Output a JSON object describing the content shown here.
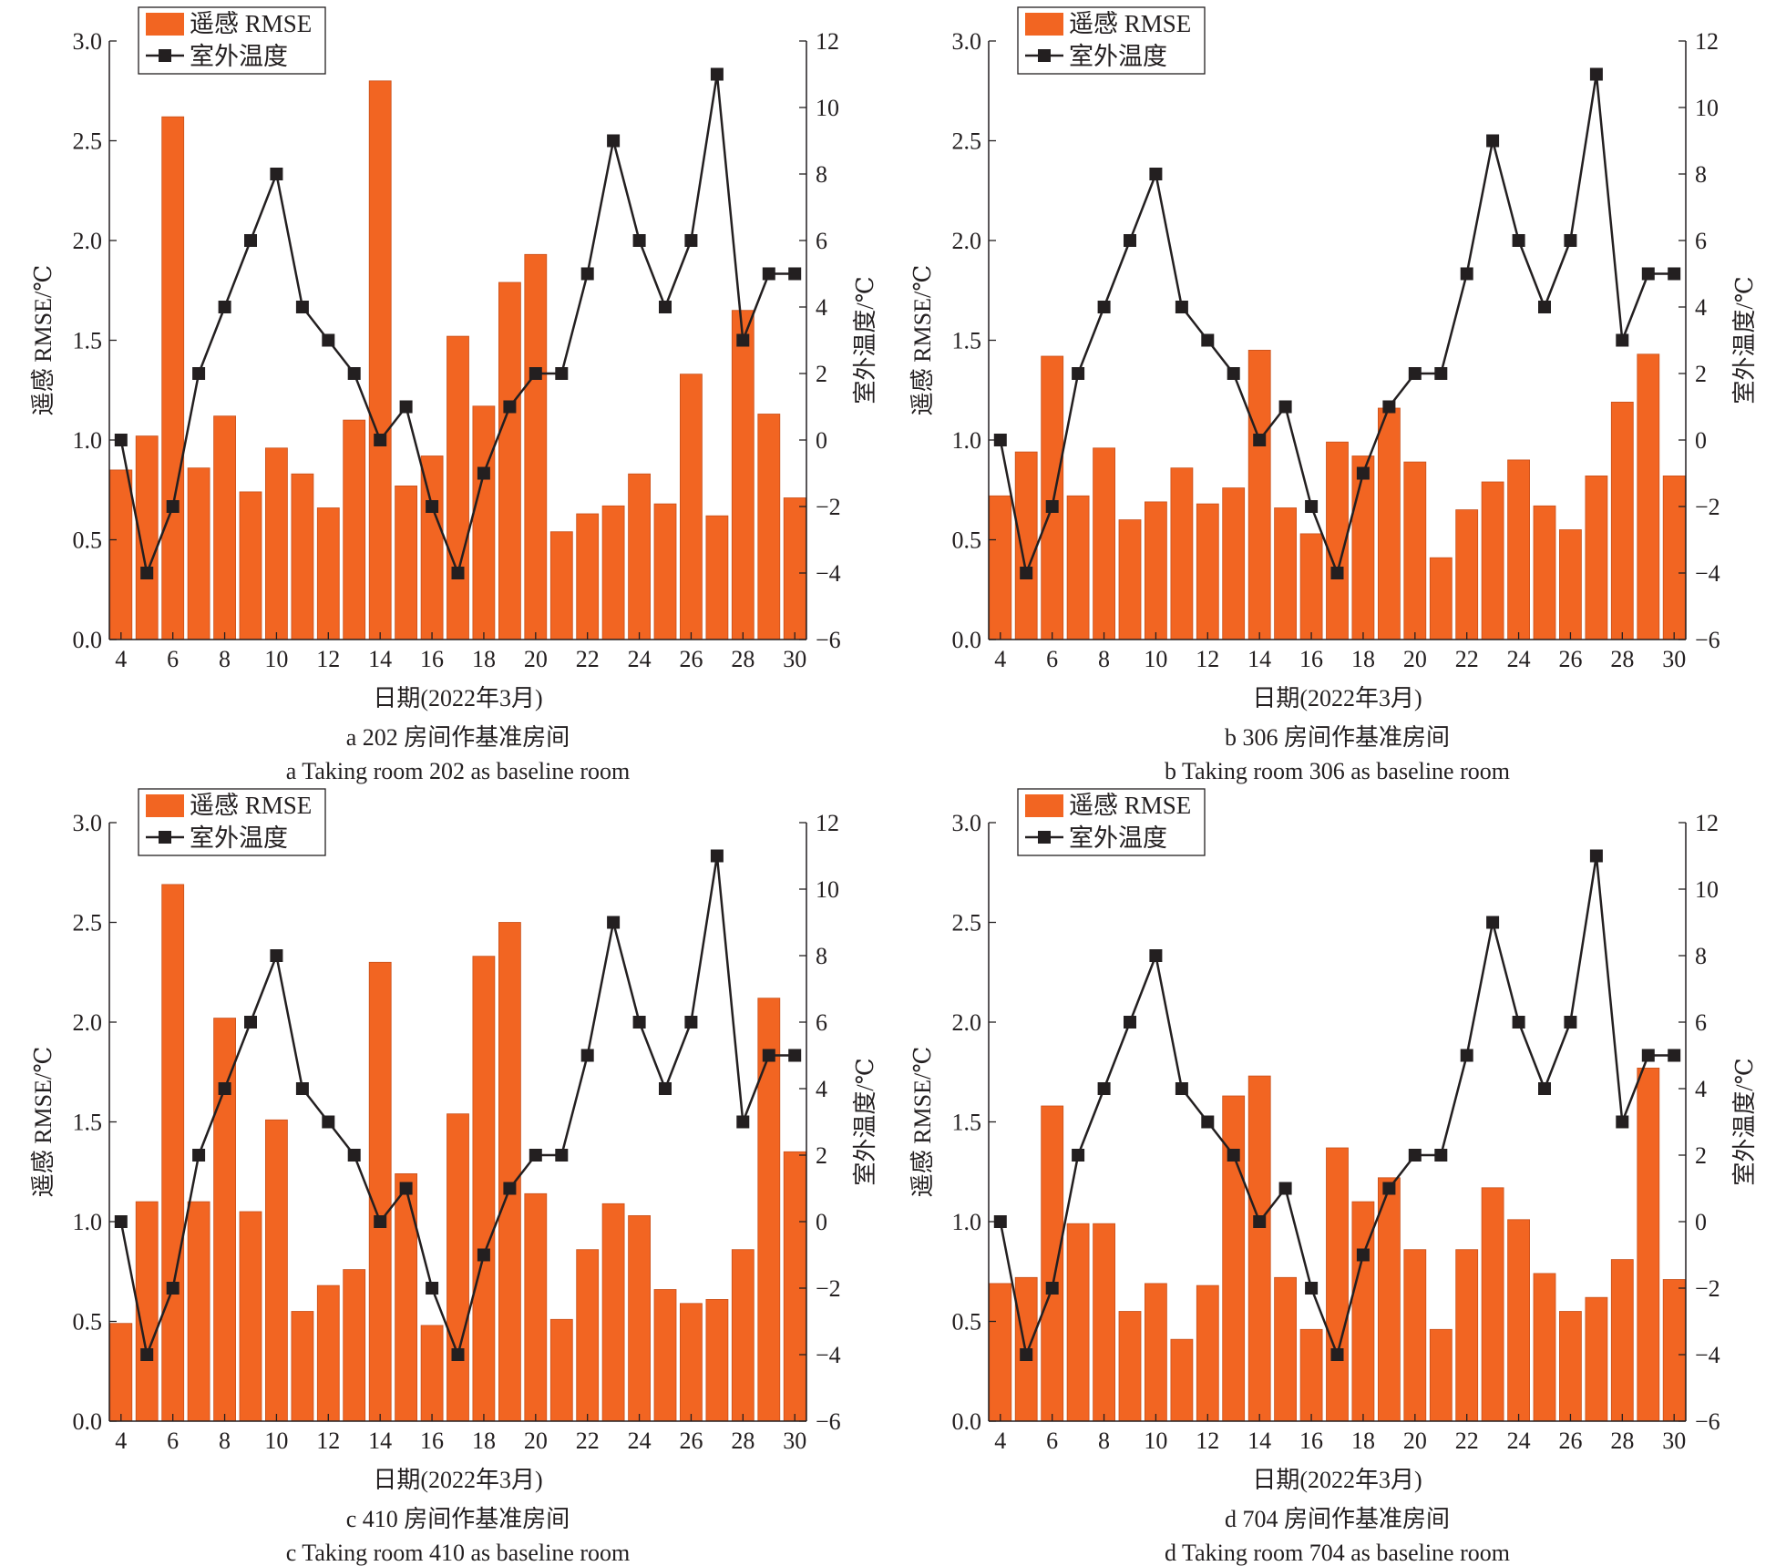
{
  "colors": {
    "bar": "#f26522",
    "bar_edge": "#c8501b",
    "line": "#231f20",
    "axis": "#231f20",
    "background": "#ffffff"
  },
  "chart_data": [
    {
      "type": "bar",
      "panel": "a",
      "caption_cn": "a  202 房间作基准房间",
      "caption_en": "a  Taking room 202 as baseline room",
      "xlabel": "日期(2022年3月)",
      "ylabel_left": "遥感 RMSE/℃",
      "ylabel_right": "室外温度/℃",
      "legend": [
        "遥感 RMSE",
        "室外温度"
      ],
      "legend_position": "top-left",
      "x": [
        4,
        5,
        6,
        7,
        8,
        9,
        10,
        11,
        12,
        13,
        14,
        15,
        16,
        17,
        18,
        19,
        20,
        21,
        22,
        23,
        24,
        25,
        26,
        27,
        28,
        29,
        30
      ],
      "x_ticks": [
        4,
        6,
        8,
        10,
        12,
        14,
        16,
        18,
        20,
        22,
        24,
        26,
        28,
        30
      ],
      "ylim_left": [
        0,
        3.0
      ],
      "yticks_left": [
        0.0,
        0.5,
        1.0,
        1.5,
        2.0,
        2.5,
        3.0
      ],
      "ylim_right": [
        -6,
        12
      ],
      "yticks_right": [
        -6,
        -4,
        -2,
        0,
        2,
        4,
        6,
        8,
        10,
        12
      ],
      "series": [
        {
          "name": "遥感 RMSE",
          "kind": "bar",
          "axis": "left",
          "values": [
            0.85,
            1.02,
            2.62,
            0.86,
            1.12,
            0.74,
            0.96,
            0.83,
            0.66,
            1.1,
            2.8,
            0.77,
            0.92,
            1.52,
            1.17,
            1.79,
            1.93,
            0.54,
            0.63,
            0.67,
            0.83,
            0.68,
            1.33,
            0.62,
            1.65,
            1.13,
            0.71
          ]
        },
        {
          "name": "室外温度",
          "kind": "line",
          "axis": "right",
          "values": [
            0,
            -4,
            -2,
            2,
            4,
            6,
            8,
            4,
            3,
            2,
            0,
            1,
            -2,
            -4,
            -1,
            1,
            2,
            2,
            5,
            9,
            6,
            4,
            6,
            11,
            3,
            5,
            5
          ]
        }
      ]
    },
    {
      "type": "bar",
      "panel": "b",
      "caption_cn": "b  306 房间作基准房间",
      "caption_en": "b  Taking room 306 as baseline room",
      "xlabel": "日期(2022年3月)",
      "ylabel_left": "遥感 RMSE/℃",
      "ylabel_right": "室外温度/℃",
      "legend": [
        "遥感 RMSE",
        "室外温度"
      ],
      "legend_position": "top-left",
      "x": [
        4,
        5,
        6,
        7,
        8,
        9,
        10,
        11,
        12,
        13,
        14,
        15,
        16,
        17,
        18,
        19,
        20,
        21,
        22,
        23,
        24,
        25,
        26,
        27,
        28,
        29,
        30
      ],
      "x_ticks": [
        4,
        6,
        8,
        10,
        12,
        14,
        16,
        18,
        20,
        22,
        24,
        26,
        28,
        30
      ],
      "ylim_left": [
        0,
        3.0
      ],
      "yticks_left": [
        0.0,
        0.5,
        1.0,
        1.5,
        2.0,
        2.5,
        3.0
      ],
      "ylim_right": [
        -6,
        12
      ],
      "yticks_right": [
        -6,
        -4,
        -2,
        0,
        2,
        4,
        6,
        8,
        10,
        12
      ],
      "series": [
        {
          "name": "遥感 RMSE",
          "kind": "bar",
          "axis": "left",
          "values": [
            0.72,
            0.94,
            1.42,
            0.72,
            0.96,
            0.6,
            0.69,
            0.86,
            0.68,
            0.76,
            1.45,
            0.66,
            0.53,
            0.99,
            0.92,
            1.16,
            0.89,
            0.41,
            0.65,
            0.79,
            0.9,
            0.67,
            0.55,
            0.82,
            1.19,
            1.43,
            0.82
          ]
        },
        {
          "name": "室外温度",
          "kind": "line",
          "axis": "right",
          "values": [
            0,
            -4,
            -2,
            2,
            4,
            6,
            8,
            4,
            3,
            2,
            0,
            1,
            -2,
            -4,
            -1,
            1,
            2,
            2,
            5,
            9,
            6,
            4,
            6,
            11,
            3,
            5,
            5
          ]
        }
      ]
    },
    {
      "type": "bar",
      "panel": "c",
      "caption_cn": "c  410 房间作基准房间",
      "caption_en": "c  Taking room 410 as baseline room",
      "xlabel": "日期(2022年3月)",
      "ylabel_left": "遥感 RMSE/℃",
      "ylabel_right": "室外温度/℃",
      "legend": [
        "遥感 RMSE",
        "室外温度"
      ],
      "legend_position": "top-left",
      "x": [
        4,
        5,
        6,
        7,
        8,
        9,
        10,
        11,
        12,
        13,
        14,
        15,
        16,
        17,
        18,
        19,
        20,
        21,
        22,
        23,
        24,
        25,
        26,
        27,
        28,
        29,
        30
      ],
      "x_ticks": [
        4,
        6,
        8,
        10,
        12,
        14,
        16,
        18,
        20,
        22,
        24,
        26,
        28,
        30
      ],
      "ylim_left": [
        0,
        3.0
      ],
      "yticks_left": [
        0.0,
        0.5,
        1.0,
        1.5,
        2.0,
        2.5,
        3.0
      ],
      "ylim_right": [
        -6,
        12
      ],
      "yticks_right": [
        -6,
        -4,
        -2,
        0,
        2,
        4,
        6,
        8,
        10,
        12
      ],
      "series": [
        {
          "name": "遥感 RMSE",
          "kind": "bar",
          "axis": "left",
          "values": [
            0.49,
            1.1,
            2.69,
            1.1,
            2.02,
            1.05,
            1.51,
            0.55,
            0.68,
            0.76,
            2.3,
            1.24,
            0.48,
            1.54,
            2.33,
            2.5,
            1.14,
            0.51,
            0.86,
            1.09,
            1.03,
            0.66,
            0.59,
            0.61,
            0.86,
            2.12,
            1.35
          ]
        },
        {
          "name": "室外温度",
          "kind": "line",
          "axis": "right",
          "values": [
            0,
            -4,
            -2,
            2,
            4,
            6,
            8,
            4,
            3,
            2,
            0,
            1,
            -2,
            -4,
            -1,
            1,
            2,
            2,
            5,
            9,
            6,
            4,
            6,
            11,
            3,
            5,
            5
          ]
        }
      ]
    },
    {
      "type": "bar",
      "panel": "d",
      "caption_cn": "d  704 房间作基准房间",
      "caption_en": "d  Taking room 704 as baseline room",
      "xlabel": "日期(2022年3月)",
      "ylabel_left": "遥感 RMSE/℃",
      "ylabel_right": "室外温度/℃",
      "legend": [
        "遥感 RMSE",
        "室外温度"
      ],
      "legend_position": "top-left",
      "x": [
        4,
        5,
        6,
        7,
        8,
        9,
        10,
        11,
        12,
        13,
        14,
        15,
        16,
        17,
        18,
        19,
        20,
        21,
        22,
        23,
        24,
        25,
        26,
        27,
        28,
        29,
        30
      ],
      "x_ticks": [
        4,
        6,
        8,
        10,
        12,
        14,
        16,
        18,
        20,
        22,
        24,
        26,
        28,
        30
      ],
      "ylim_left": [
        0,
        3.0
      ],
      "yticks_left": [
        0.0,
        0.5,
        1.0,
        1.5,
        2.0,
        2.5,
        3.0
      ],
      "ylim_right": [
        -6,
        12
      ],
      "yticks_right": [
        -6,
        -4,
        -2,
        0,
        2,
        4,
        6,
        8,
        10,
        12
      ],
      "series": [
        {
          "name": "遥感 RMSE",
          "kind": "bar",
          "axis": "left",
          "values": [
            0.69,
            0.72,
            1.58,
            0.99,
            0.99,
            0.55,
            0.69,
            0.41,
            0.68,
            1.63,
            1.73,
            0.72,
            0.46,
            1.37,
            1.1,
            1.22,
            0.86,
            0.46,
            0.86,
            1.17,
            1.01,
            0.74,
            0.55,
            0.62,
            0.81,
            1.77,
            0.71
          ]
        },
        {
          "name": "室外温度",
          "kind": "line",
          "axis": "right",
          "values": [
            0,
            -4,
            -2,
            2,
            4,
            6,
            8,
            4,
            3,
            2,
            0,
            1,
            -2,
            -4,
            -1,
            1,
            2,
            2,
            5,
            9,
            6,
            4,
            6,
            11,
            3,
            5,
            5
          ]
        }
      ]
    }
  ]
}
